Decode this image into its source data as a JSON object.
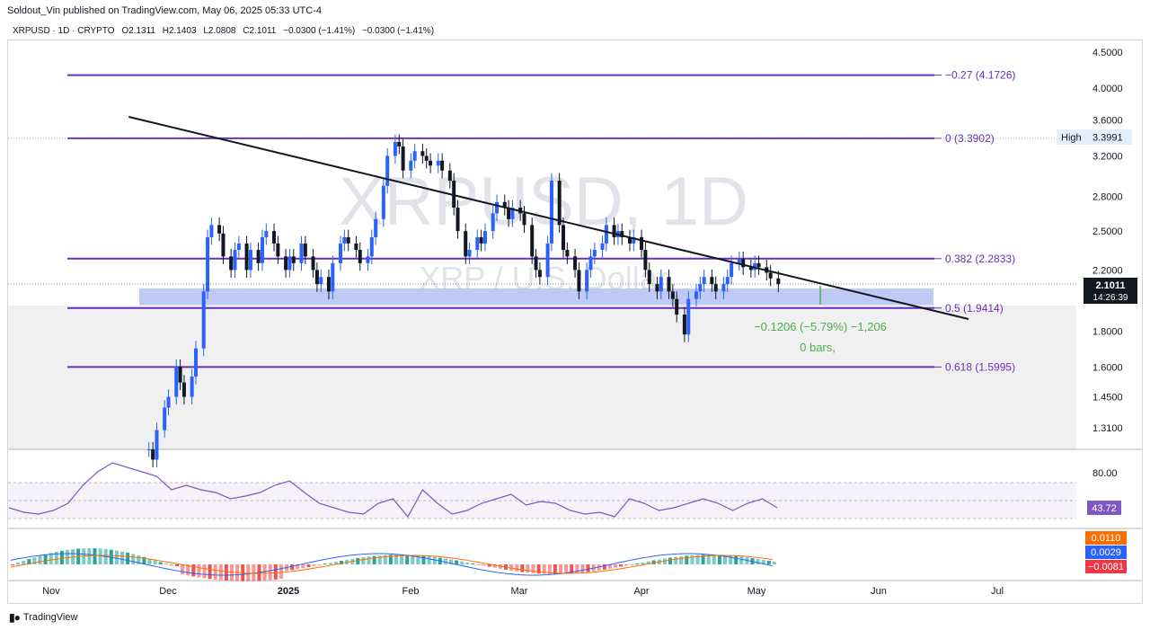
{
  "header": {
    "published": "Soldout_Vin published on TradingView.com, May 06, 2025 05:33 UTC-4",
    "symbol": "XRPUSD · 1D · CRYPTO",
    "open": "O2.1311",
    "high": "H2.1403",
    "low": "L2.0808",
    "close": "C2.1011",
    "change": "−0.0300 (−1.41%)",
    "change2": "−0.0300 (−1.41%)"
  },
  "watermark": {
    "main": "XRPUSD, 1D",
    "sub": "XRP / U.S. Dollar"
  },
  "footer": {
    "brand": "TradingView"
  },
  "colors": {
    "up": "#089981",
    "down": "#131722",
    "fib": "#6a2fb8",
    "zone": "#a8b8f0",
    "rsi": "#7e57c2",
    "macd": "#2962ff",
    "signal": "#ff6d00"
  },
  "chart_data": {
    "type": "candlestick",
    "title": "XRPUSD, 1D",
    "price_axis": {
      "scale": "log",
      "ticks": [
        "4.5000",
        "4.0000",
        "3.6000",
        "3.2000",
        "2.8000",
        "2.5000",
        "2.2000",
        "1.8000",
        "1.6000",
        "1.4500",
        "1.3100"
      ],
      "tick_values": [
        4.5,
        4.0,
        3.6,
        3.2,
        2.8,
        2.5,
        2.2,
        1.8,
        1.6,
        1.45,
        1.31
      ]
    },
    "time_axis": {
      "labels": [
        "Nov",
        "Dec",
        "2025",
        "Feb",
        "Mar",
        "Apr",
        "May",
        "Jun",
        "Jul"
      ]
    },
    "fib_levels": [
      {
        "label": "−0.27 (4.1726)",
        "value": 4.1726
      },
      {
        "label": "0 (3.3902)",
        "value": 3.3902
      },
      {
        "label": "0.382 (2.2833)",
        "value": 2.2833
      },
      {
        "label": "0.5 (1.9414)",
        "value": 1.9414
      },
      {
        "label": "0.618 (1.5995)",
        "value": 1.5995
      }
    ],
    "support_zone": {
      "from": 1.96,
      "to": 2.07
    },
    "trendline": {
      "from": {
        "date": "2024-12-23",
        "price": 3.65
      },
      "to": {
        "date": "2025-06-25",
        "price": 1.87
      }
    },
    "measure": {
      "line1": "−0.1206 (−5.79%) −1,206",
      "line2": "0 bars,"
    },
    "labels": {
      "high_tag": "High",
      "high_value": "3.3991",
      "last_price": "2.1011",
      "countdown": "14:26:39"
    },
    "candles_path": [
      1.22,
      1.18,
      1.3,
      1.4,
      1.45,
      1.6,
      1.52,
      1.45,
      1.55,
      1.7,
      2.05,
      2.45,
      2.55,
      2.48,
      2.3,
      2.2,
      2.35,
      2.4,
      2.2,
      2.35,
      2.25,
      2.45,
      2.5,
      2.4,
      2.3,
      2.2,
      2.3,
      2.25,
      2.4,
      2.3,
      2.2,
      2.1,
      2.15,
      2.05,
      2.25,
      2.4,
      2.45,
      2.4,
      2.35,
      2.25,
      2.3,
      2.45,
      2.6,
      2.9,
      3.2,
      3.35,
      3.3,
      3.05,
      3.15,
      3.25,
      3.2,
      3.15,
      3.1,
      3.15,
      3.05,
      2.95,
      2.7,
      2.5,
      2.3,
      2.35,
      2.45,
      2.4,
      2.5,
      2.65,
      2.75,
      2.7,
      2.6,
      2.7,
      2.65,
      2.55,
      2.3,
      2.2,
      2.15,
      2.4,
      2.95,
      2.55,
      2.35,
      2.3,
      2.2,
      2.05,
      2.2,
      2.3,
      2.35,
      2.4,
      2.55,
      2.45,
      2.5,
      2.45,
      2.4,
      2.45,
      2.35,
      2.2,
      2.1,
      2.05,
      2.15,
      2.05,
      2.0,
      1.9,
      1.78,
      2.0,
      2.05,
      2.1,
      2.15,
      2.1,
      2.05,
      2.1,
      2.15,
      2.25,
      2.28,
      2.22,
      2.2,
      2.25,
      2.22,
      2.18,
      2.14,
      2.1
    ],
    "rsi": {
      "label": "80.00",
      "value": "43.72",
      "band": [
        70,
        30
      ]
    },
    "macd": {
      "labels": [
        "0.0110",
        "0.0029",
        "−0.0081"
      ]
    }
  }
}
